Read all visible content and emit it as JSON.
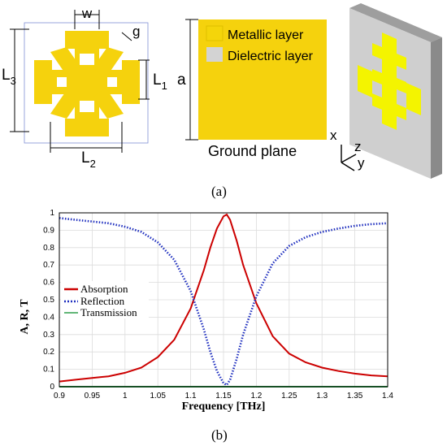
{
  "figure_a": {
    "panel_label": "(a)",
    "dim_w": "w",
    "dim_g": "g",
    "dim_L3": "L",
    "dim_L3_sub": "3",
    "dim_L1": "L",
    "dim_L1_sub": "1",
    "dim_L2": "L",
    "dim_L2_sub": "2",
    "dim_a": "a",
    "legend_metal": "Metallic layer",
    "legend_dielectric": "Dielectric layer",
    "ground_plane_label": "Ground plane",
    "axis_x": "x",
    "axis_z": "z",
    "axis_y": "y",
    "colors": {
      "metal": "#f5d20d",
      "dielectric": "#d3d3d3",
      "bright_metal": "#f4f400"
    }
  },
  "figure_b": {
    "panel_label": "(b)"
  },
  "chart_data": {
    "type": "line",
    "xlabel": "Frequency [THz]",
    "ylabel": "A, R, T",
    "xlim": [
      0.9,
      1.4
    ],
    "ylim": [
      0,
      1
    ],
    "xticks": [
      "0.9",
      "0.95",
      "1",
      "1.05",
      "1.1",
      "1.15",
      "1.2",
      "1.25",
      "1.3",
      "1.35",
      "1.4"
    ],
    "yticks": [
      "0",
      "0.1",
      "0.2",
      "0.3",
      "0.4",
      "0.5",
      "0.6",
      "0.7",
      "0.8",
      "0.9",
      "1"
    ],
    "grid": true,
    "legend_position": "middle-left",
    "x": [
      0.9,
      0.925,
      0.95,
      0.975,
      1.0,
      1.025,
      1.05,
      1.075,
      1.1,
      1.12,
      1.13,
      1.14,
      1.15,
      1.155,
      1.16,
      1.17,
      1.18,
      1.2,
      1.225,
      1.25,
      1.275,
      1.3,
      1.325,
      1.35,
      1.375,
      1.4
    ],
    "series": [
      {
        "name": "Absorption",
        "color": "#cc0000",
        "style": "solid",
        "values": [
          0.03,
          0.04,
          0.05,
          0.06,
          0.08,
          0.11,
          0.17,
          0.27,
          0.45,
          0.67,
          0.8,
          0.91,
          0.98,
          0.99,
          0.96,
          0.84,
          0.7,
          0.48,
          0.29,
          0.19,
          0.14,
          0.11,
          0.09,
          0.075,
          0.065,
          0.06
        ]
      },
      {
        "name": "Reflection",
        "color": "#1f2fbf",
        "style": "dotted",
        "values": [
          0.97,
          0.96,
          0.95,
          0.94,
          0.92,
          0.89,
          0.83,
          0.73,
          0.55,
          0.33,
          0.2,
          0.09,
          0.02,
          0.01,
          0.04,
          0.16,
          0.3,
          0.52,
          0.71,
          0.81,
          0.86,
          0.89,
          0.91,
          0.925,
          0.935,
          0.94
        ]
      },
      {
        "name": "Transmission",
        "color": "#2e9e4a",
        "style": "solid",
        "values": [
          0,
          0,
          0,
          0,
          0,
          0,
          0,
          0,
          0,
          0,
          0,
          0,
          0,
          0,
          0,
          0,
          0,
          0,
          0,
          0,
          0,
          0,
          0,
          0,
          0,
          0
        ]
      }
    ]
  }
}
